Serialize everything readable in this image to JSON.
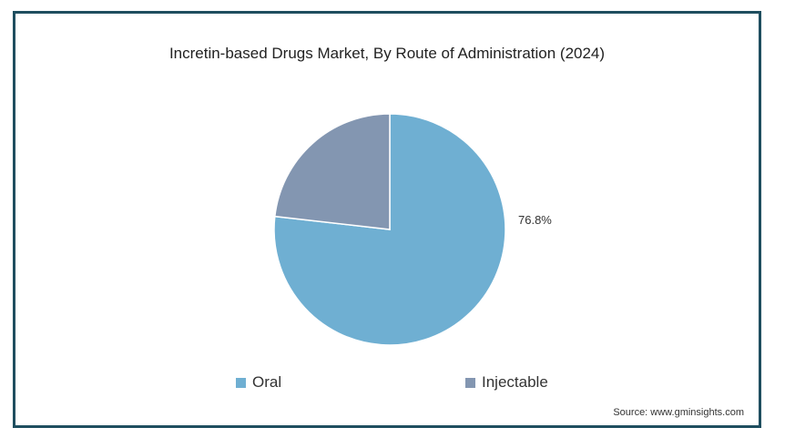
{
  "chart_data": {
    "type": "pie",
    "title": "Incretin-based Drugs Market, By Route of Administration (2024)",
    "slices": [
      {
        "name": "Oral",
        "value": 76.8,
        "label": "76.8%",
        "color": "#6fafd2"
      },
      {
        "name": "Injectable",
        "value": 23.2,
        "label": "",
        "color": "#8396b1"
      }
    ],
    "legend": [
      "Oral",
      "Injectable"
    ],
    "legend_position": "bottom"
  },
  "source": "Source: www.gminsights.com"
}
